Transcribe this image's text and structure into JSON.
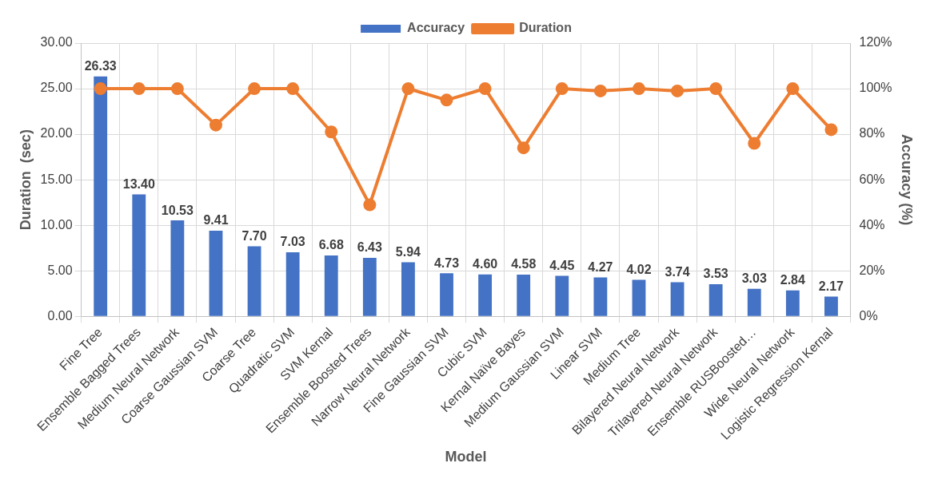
{
  "chart_data": {
    "type": "bar",
    "xlabel": "Model",
    "ylabel": "Duration  (sec)",
    "y2label": "Accuracy (%)",
    "categories": [
      "Fine Tree",
      "Ensemble Bagged Trees",
      "Medium Neural Network",
      "Coarse Gaussian SVM",
      "Coarse Tree",
      "Quadratic SVM",
      "SVM Kernal",
      "Ensemble Boosted Trees",
      "Narrow Neural Network",
      "Fine Gaussian SVM",
      "Cubic SVM",
      "Kernal Naïve Bayes",
      "Medium Gaussian SVM",
      "Linear SVM",
      "Medium Tree",
      "Bilayered Neural Network",
      "Trilayered Neural Network",
      "Ensemble RUSBoosted…",
      "Wide Neural Network",
      "Logistic Regression Kernal"
    ],
    "series": [
      {
        "name": "Accuracy",
        "color": "#4472c4",
        "values": [
          26.33,
          13.4,
          10.53,
          9.41,
          7.7,
          7.03,
          6.68,
          6.43,
          5.94,
          4.73,
          4.6,
          4.58,
          4.45,
          4.27,
          4.02,
          3.74,
          3.53,
          3.03,
          2.84,
          2.17
        ],
        "value_labels": [
          "26.33",
          "13.40",
          "10.53",
          "9.41",
          "7.70",
          "7.03",
          "6.68",
          "6.43",
          "5.94",
          "4.73",
          "4.60",
          "4.58",
          "4.45",
          "4.27",
          "4.02",
          "3.74",
          "3.53",
          "3.03",
          "2.84",
          "2.17"
        ]
      },
      {
        "name": "Duration",
        "type": "line",
        "axis": "y2",
        "color": "#ed7d31",
        "values": [
          100,
          100,
          100,
          84,
          100,
          100,
          81,
          49,
          100,
          95,
          100,
          74,
          100,
          99,
          100,
          99,
          100,
          76,
          100,
          82
        ]
      }
    ],
    "ylim": [
      0,
      30
    ],
    "yticks": [
      {
        "value": 0,
        "label": "0.00"
      },
      {
        "value": 5,
        "label": "5.00"
      },
      {
        "value": 10,
        "label": "10.00"
      },
      {
        "value": 15,
        "label": "15.00"
      },
      {
        "value": 20,
        "label": "20.00"
      },
      {
        "value": 25,
        "label": "25.00"
      },
      {
        "value": 30,
        "label": "30.00"
      }
    ],
    "y2lim": [
      0,
      120
    ],
    "y2ticks": [
      {
        "value": 0,
        "label": "0%"
      },
      {
        "value": 20,
        "label": "20%"
      },
      {
        "value": 40,
        "label": "40%"
      },
      {
        "value": 60,
        "label": "60%"
      },
      {
        "value": 80,
        "label": "80%"
      },
      {
        "value": 100,
        "label": "100%"
      },
      {
        "value": 120,
        "label": "120%"
      }
    ],
    "grid": true,
    "legend": "top",
    "marker": "circle"
  }
}
